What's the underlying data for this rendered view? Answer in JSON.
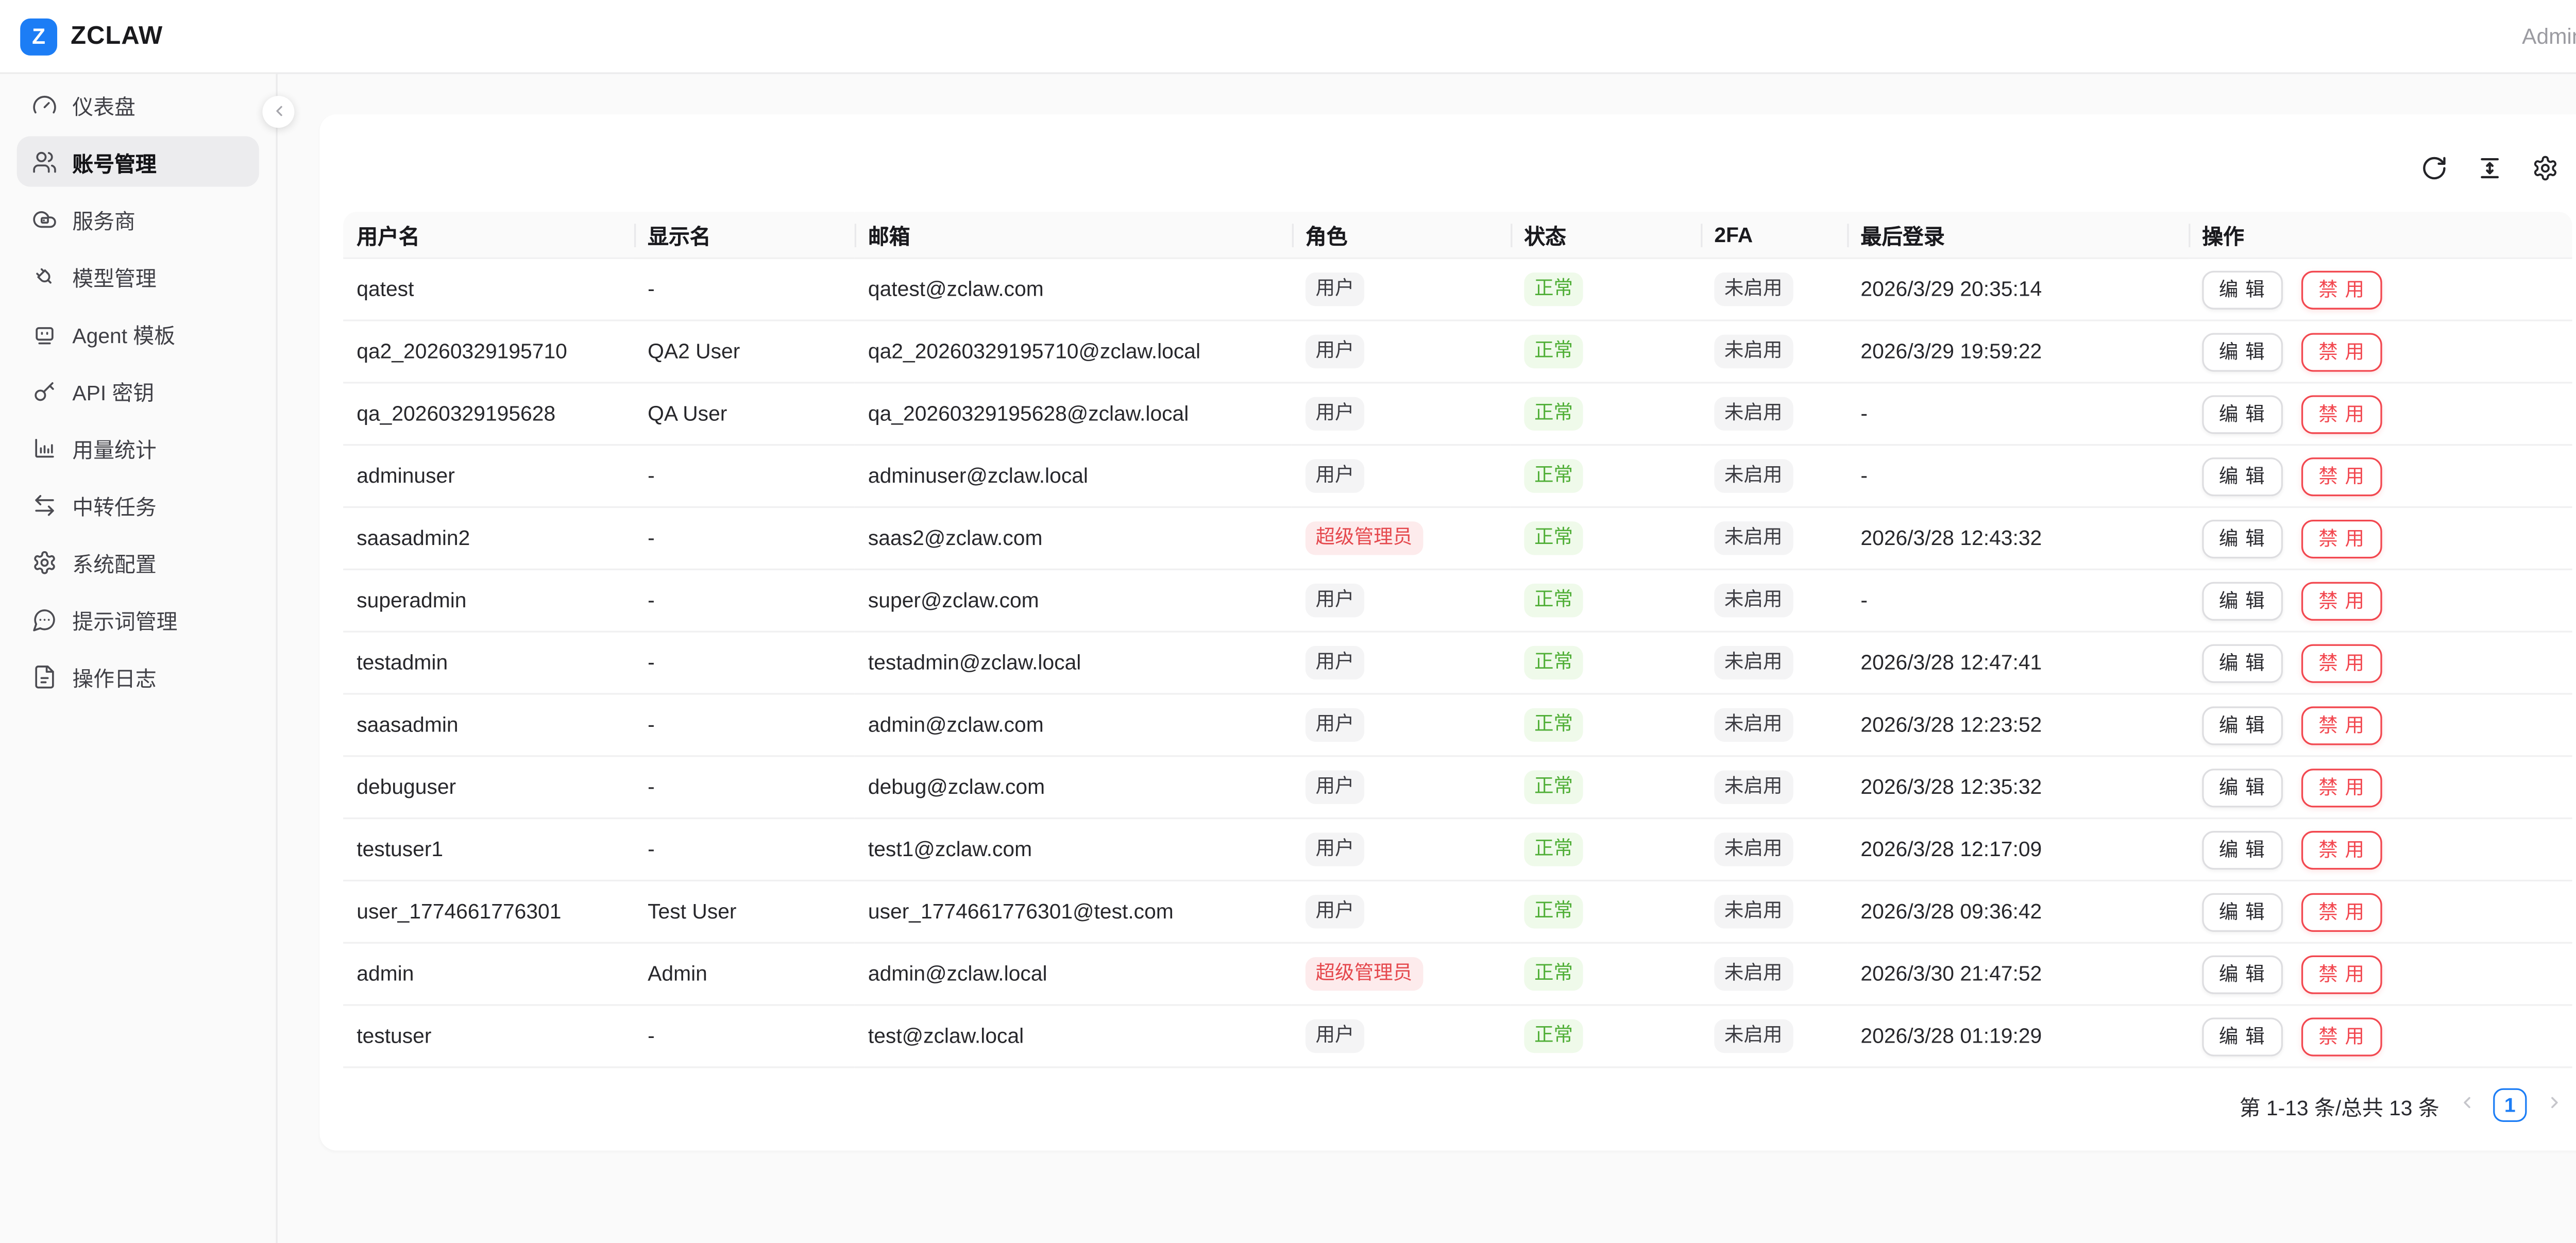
{
  "colors": {
    "brand_blue": "#1c7df5",
    "tag_green": "#4fae36",
    "tag_green_bg": "#effaea",
    "tag_red": "#e5484d",
    "tag_red_bg": "#fdebec",
    "tag_gray_bg": "#f4f4f5",
    "danger_red": "#f2474f"
  },
  "topbar": {
    "logo_letter": "Z",
    "logo_text": "ZCLAW",
    "user_label": "Admin"
  },
  "sidebar": {
    "items": [
      {
        "key": "dashboard",
        "label": "仪表盘",
        "icon": "gauge-icon",
        "active": false
      },
      {
        "key": "accounts",
        "label": "账号管理",
        "icon": "users-icon",
        "active": true
      },
      {
        "key": "providers",
        "label": "服务商",
        "icon": "cloud-server-icon",
        "active": false
      },
      {
        "key": "models",
        "label": "模型管理",
        "icon": "plug-icon",
        "active": false
      },
      {
        "key": "agent-templates",
        "label": "Agent 模板",
        "icon": "bot-icon",
        "active": false
      },
      {
        "key": "api-keys",
        "label": "API 密钥",
        "icon": "key-icon",
        "active": false
      },
      {
        "key": "usage-stats",
        "label": "用量统计",
        "icon": "bar-chart-icon",
        "active": false
      },
      {
        "key": "relay-tasks",
        "label": "中转任务",
        "icon": "swap-arrows-icon",
        "active": false
      },
      {
        "key": "system-config",
        "label": "系统配置",
        "icon": "gear-icon",
        "active": false
      },
      {
        "key": "prompts",
        "label": "提示词管理",
        "icon": "message-dots-icon",
        "active": false
      },
      {
        "key": "operation-logs",
        "label": "操作日志",
        "icon": "file-text-icon",
        "active": false
      }
    ],
    "collapse_icon": "chevron-left-icon"
  },
  "toolbar": {
    "icons": [
      "refresh-icon",
      "column-height-icon",
      "settings-icon"
    ]
  },
  "table": {
    "columns": [
      "用户名",
      "显示名",
      "邮箱",
      "角色",
      "状态",
      "2FA",
      "最后登录",
      "操作"
    ],
    "actions": {
      "edit_label": "编 辑",
      "disable_label": "禁 用"
    },
    "rows": [
      {
        "username": "qatest",
        "display_name": "-",
        "email": "qatest@zclaw.com",
        "role": "用户",
        "role_variant": "user",
        "status": "正常",
        "twofa": "未启用",
        "last_login": "2026/3/29 20:35:14"
      },
      {
        "username": "qa2_20260329195710",
        "display_name": "QA2 User",
        "email": "qa2_20260329195710@zclaw.local",
        "role": "用户",
        "role_variant": "user",
        "status": "正常",
        "twofa": "未启用",
        "last_login": "2026/3/29 19:59:22"
      },
      {
        "username": "qa_20260329195628",
        "display_name": "QA User",
        "email": "qa_20260329195628@zclaw.local",
        "role": "用户",
        "role_variant": "user",
        "status": "正常",
        "twofa": "未启用",
        "last_login": "-"
      },
      {
        "username": "adminuser",
        "display_name": "-",
        "email": "adminuser@zclaw.local",
        "role": "用户",
        "role_variant": "user",
        "status": "正常",
        "twofa": "未启用",
        "last_login": "-"
      },
      {
        "username": "saasadmin2",
        "display_name": "-",
        "email": "saas2@zclaw.com",
        "role": "超级管理员",
        "role_variant": "super",
        "status": "正常",
        "twofa": "未启用",
        "last_login": "2026/3/28 12:43:32"
      },
      {
        "username": "superadmin",
        "display_name": "-",
        "email": "super@zclaw.com",
        "role": "用户",
        "role_variant": "user",
        "status": "正常",
        "twofa": "未启用",
        "last_login": "-"
      },
      {
        "username": "testadmin",
        "display_name": "-",
        "email": "testadmin@zclaw.local",
        "role": "用户",
        "role_variant": "user",
        "status": "正常",
        "twofa": "未启用",
        "last_login": "2026/3/28 12:47:41"
      },
      {
        "username": "saasadmin",
        "display_name": "-",
        "email": "admin@zclaw.com",
        "role": "用户",
        "role_variant": "user",
        "status": "正常",
        "twofa": "未启用",
        "last_login": "2026/3/28 12:23:52"
      },
      {
        "username": "debuguser",
        "display_name": "-",
        "email": "debug@zclaw.com",
        "role": "用户",
        "role_variant": "user",
        "status": "正常",
        "twofa": "未启用",
        "last_login": "2026/3/28 12:35:32"
      },
      {
        "username": "testuser1",
        "display_name": "-",
        "email": "test1@zclaw.com",
        "role": "用户",
        "role_variant": "user",
        "status": "正常",
        "twofa": "未启用",
        "last_login": "2026/3/28 12:17:09"
      },
      {
        "username": "user_1774661776301",
        "display_name": "Test User",
        "email": "user_1774661776301@test.com",
        "role": "用户",
        "role_variant": "user",
        "status": "正常",
        "twofa": "未启用",
        "last_login": "2026/3/28 09:36:42"
      },
      {
        "username": "admin",
        "display_name": "Admin",
        "email": "admin@zclaw.local",
        "role": "超级管理员",
        "role_variant": "super",
        "status": "正常",
        "twofa": "未启用",
        "last_login": "2026/3/30 21:47:52"
      },
      {
        "username": "testuser",
        "display_name": "-",
        "email": "test@zclaw.local",
        "role": "用户",
        "role_variant": "user",
        "status": "正常",
        "twofa": "未启用",
        "last_login": "2026/3/28 01:19:29"
      }
    ]
  },
  "pagination": {
    "summary": "第 1-13 条/总共 13 条",
    "current_page": "1",
    "prev_icon": "chevron-left-icon",
    "next_icon": "chevron-right-icon"
  }
}
